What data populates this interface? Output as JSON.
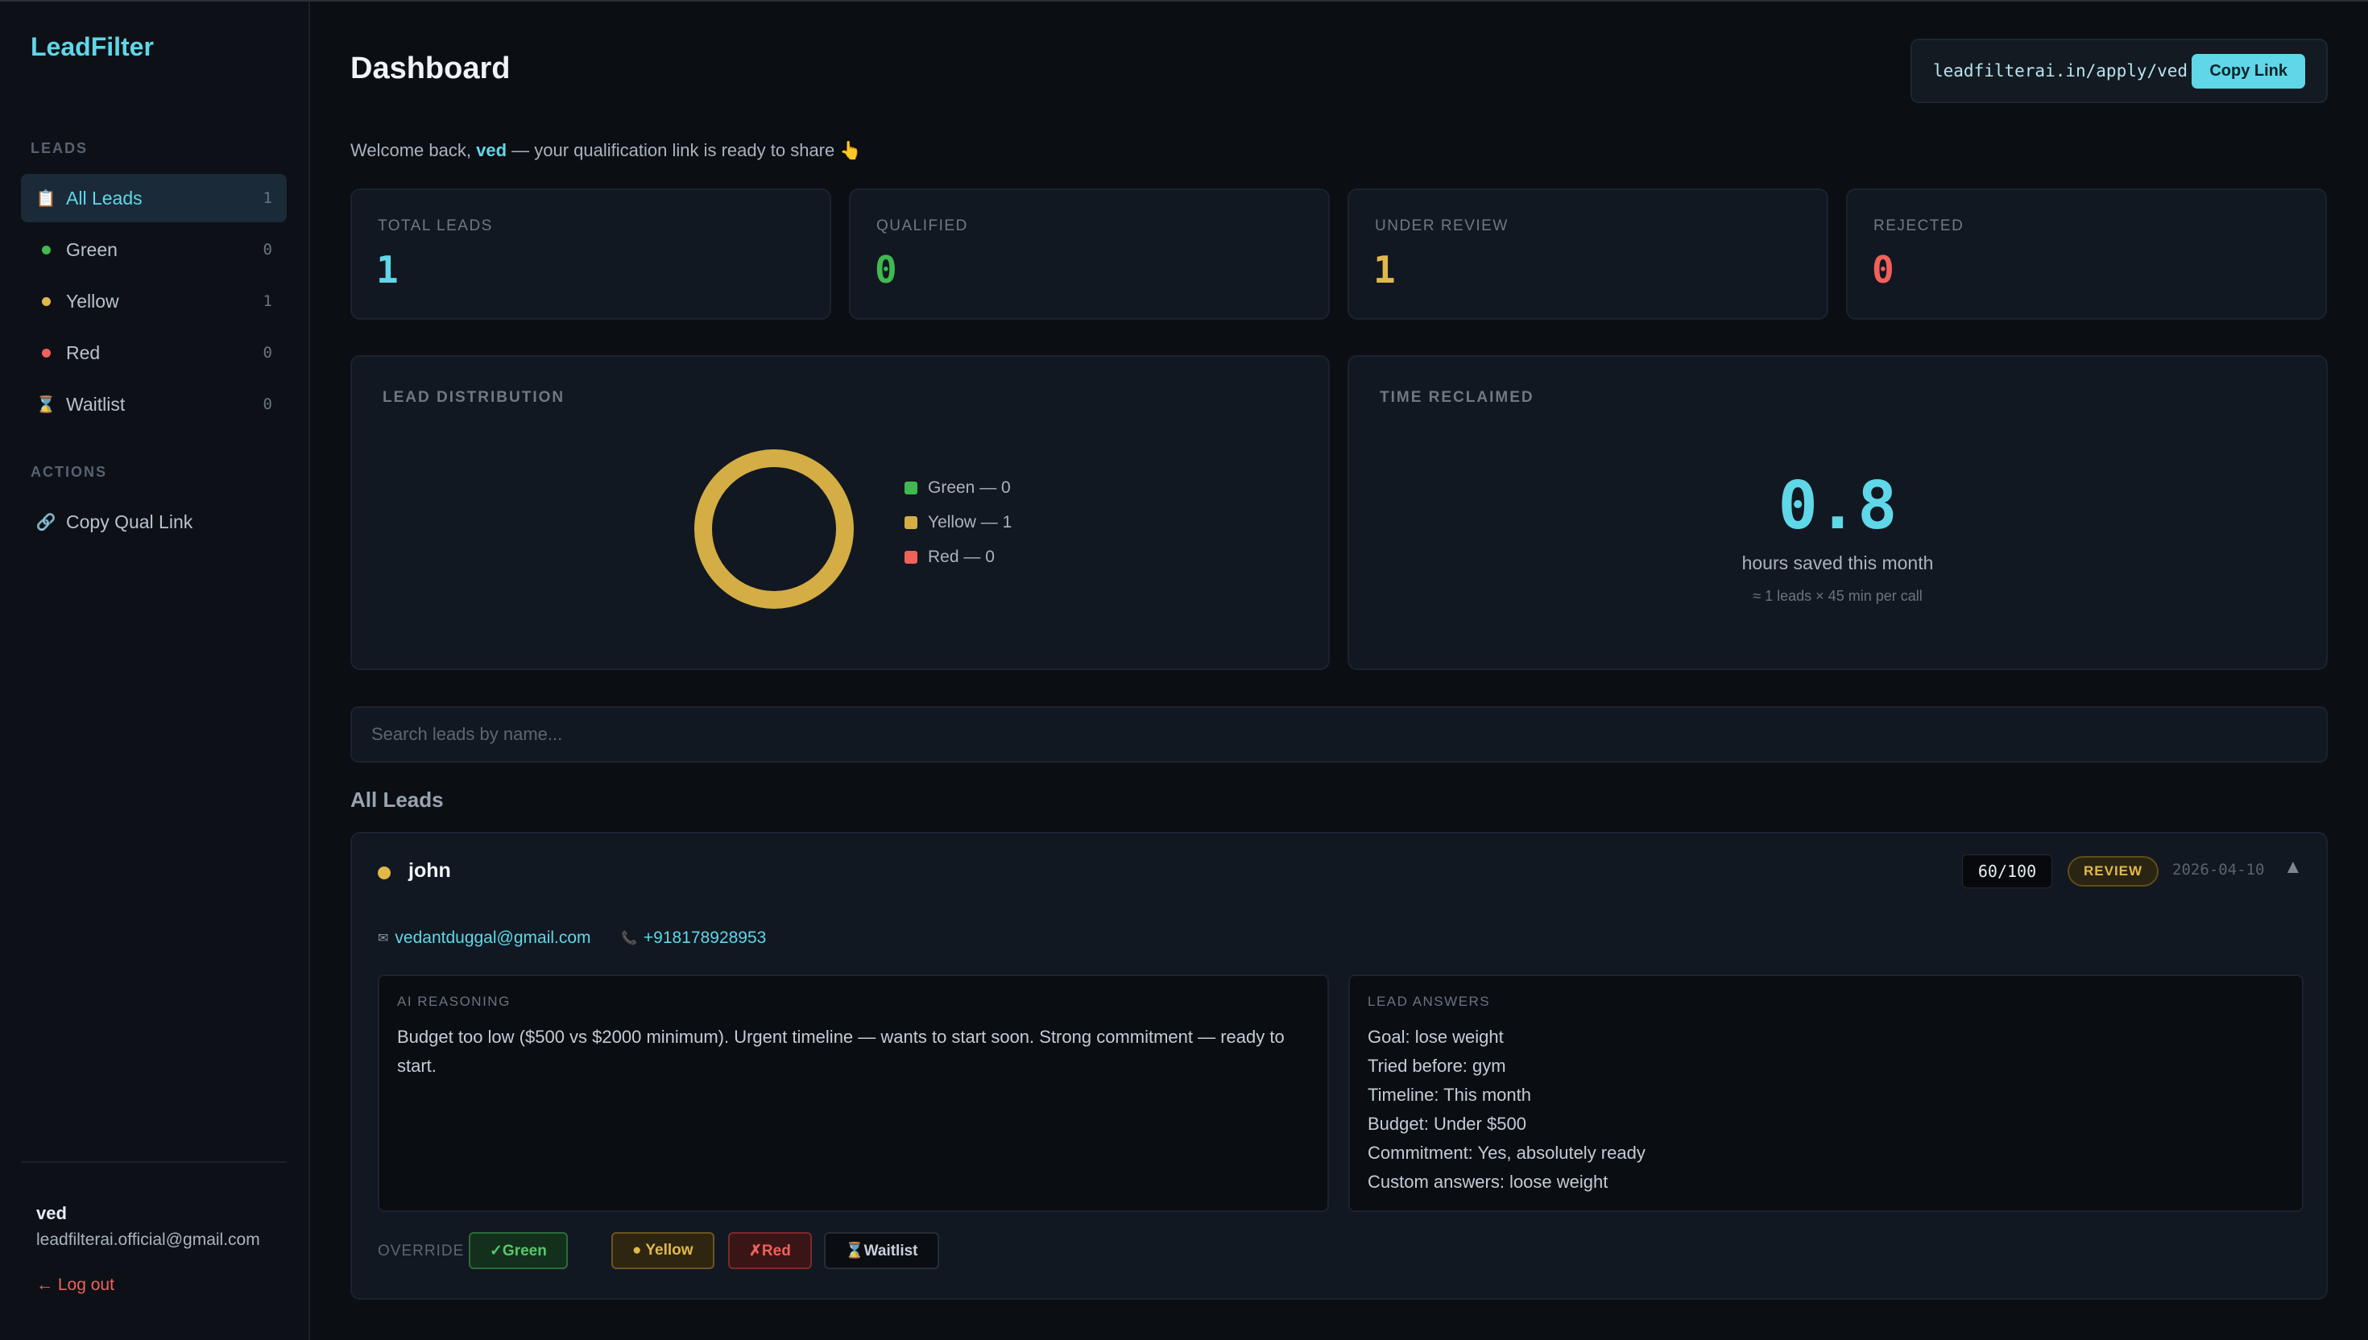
{
  "sidebar": {
    "brand": "LeadFilter",
    "leads_label": "LEADS",
    "items": [
      {
        "icon": "📋",
        "label": "All Leads",
        "count": "1"
      },
      {
        "label": "Green",
        "count": "0",
        "color": "#3fb950"
      },
      {
        "label": "Yellow",
        "count": "1",
        "color": "#e2b84a"
      },
      {
        "label": "Red",
        "count": "0",
        "color": "#f0615a"
      },
      {
        "icon": "⌛",
        "label": "Waitlist",
        "count": "0"
      }
    ],
    "actions_label": "ACTIONS",
    "action_copy": {
      "icon": "🔗",
      "label": "Copy Qual Link"
    },
    "user": {
      "name": "ved",
      "email": "leadfilterai.official@gmail.com"
    },
    "logout": "← Log out"
  },
  "header": {
    "title": "Dashboard",
    "link_url": "leadfilterai.in/apply/ved",
    "copy_label": "Copy Link"
  },
  "welcome": {
    "prefix": "Welcome back,",
    "name": "ved",
    "suffix": "— your qualification link is ready to share 👆"
  },
  "stats": [
    {
      "label": "TOTAL LEADS",
      "value": "1",
      "color": "#5fd7e8"
    },
    {
      "label": "QUALIFIED",
      "value": "0",
      "color": "#3fb950"
    },
    {
      "label": "UNDER REVIEW",
      "value": "1",
      "color": "#e2b84a"
    },
    {
      "label": "REJECTED",
      "value": "0",
      "color": "#f0615a"
    }
  ],
  "distribution": {
    "label": "LEAD DISTRIBUTION",
    "legend": [
      "Green — 0",
      "Yellow — 1",
      "Red — 0"
    ],
    "chart_data": {
      "type": "pie",
      "categories": [
        "Green",
        "Yellow",
        "Red"
      ],
      "values": [
        0,
        1,
        0
      ],
      "colors": [
        "#3fb950",
        "#d4ae44",
        "#f0615a"
      ]
    }
  },
  "time_reclaimed": {
    "label": "TIME RECLAIMED",
    "value": "0.8",
    "sub": "hours saved this month",
    "note": "≈ 1 leads × 45 min per call"
  },
  "search": {
    "placeholder": "Search leads by name..."
  },
  "list_title": "All Leads",
  "lead": {
    "name": "john",
    "status_color": "#e2b84a",
    "score": "60/100",
    "status": "REVIEW",
    "date": "2026-04-10",
    "collapse_icon": "▲",
    "email_icon": "✉",
    "email": "vedantduggal@gmail.com",
    "phone_icon": "📞",
    "phone": "+918178928953",
    "ai_label": "AI REASONING",
    "ai_text": "Budget too low ($500 vs $2000 minimum). Urgent timeline — wants to start soon. Strong commitment — ready to start.",
    "answers_label": "LEAD ANSWERS",
    "answers": [
      "Goal: lose weight",
      "Tried before: gym",
      "Timeline: This month",
      "Budget: Under $500",
      "Commitment: Yes, absolutely ready",
      "Custom answers: loose weight"
    ],
    "override_label": "OVERRIDE →",
    "overrides": [
      "✓Green",
      "● Yellow",
      "✗Red",
      "⌛Waitlist"
    ]
  }
}
